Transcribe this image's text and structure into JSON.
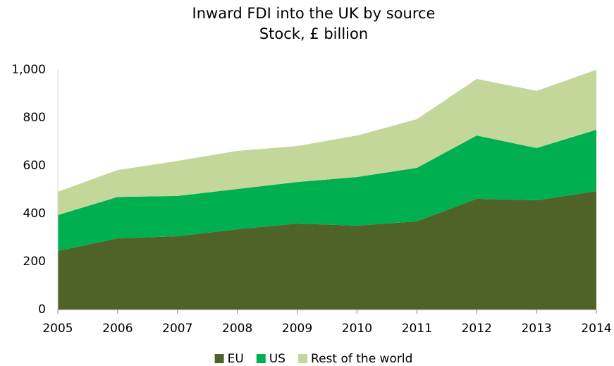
{
  "chart_data": {
    "type": "stacked-area",
    "title": "Inward FDI into the UK by source",
    "subtitle": "Stock, £ billion",
    "x": [
      2005,
      2006,
      2007,
      2008,
      2009,
      2010,
      2011,
      2012,
      2013,
      2014
    ],
    "xlim": [
      2005,
      2014
    ],
    "xticks": [
      2005,
      2006,
      2007,
      2008,
      2009,
      2010,
      2011,
      2012,
      2013,
      2014
    ],
    "ylim": [
      0,
      1000
    ],
    "yticks": [
      0,
      200,
      400,
      600,
      800,
      {
        "value": 1000,
        "label": "1,000"
      }
    ],
    "legend": "bottom",
    "series": [
      {
        "name": "EU",
        "color": "#4f6228",
        "values": [
          244,
          297,
          306,
          335,
          359,
          350,
          368,
          462,
          456,
          494
        ]
      },
      {
        "name": "US",
        "color": "#00b050",
        "values": [
          150,
          173,
          168,
          168,
          173,
          203,
          223,
          264,
          218,
          256
        ]
      },
      {
        "name": "Rest of the world",
        "color": "#c4d79b",
        "values": [
          97,
          112,
          146,
          159,
          150,
          173,
          203,
          236,
          238,
          250
        ]
      }
    ]
  }
}
